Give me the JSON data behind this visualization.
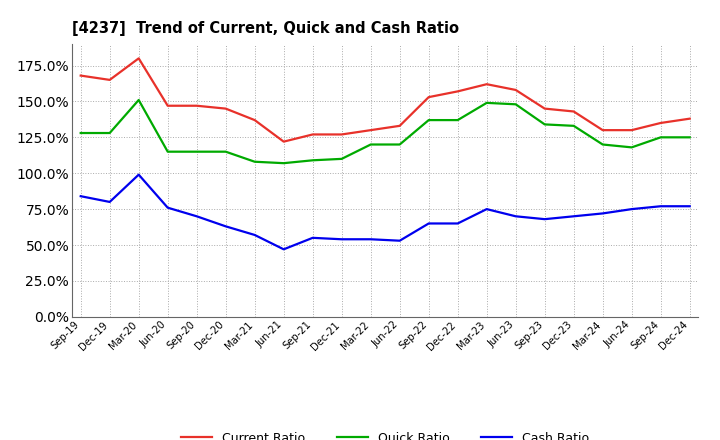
{
  "title": "[4237]  Trend of Current, Quick and Cash Ratio",
  "labels": [
    "Sep-19",
    "Dec-19",
    "Mar-20",
    "Jun-20",
    "Sep-20",
    "Dec-20",
    "Mar-21",
    "Jun-21",
    "Sep-21",
    "Dec-21",
    "Mar-22",
    "Jun-22",
    "Sep-22",
    "Dec-22",
    "Mar-23",
    "Jun-23",
    "Sep-23",
    "Dec-23",
    "Mar-24",
    "Jun-24",
    "Sep-24",
    "Dec-24"
  ],
  "current_ratio": [
    168,
    165,
    180,
    147,
    147,
    145,
    137,
    122,
    127,
    127,
    130,
    133,
    153,
    157,
    162,
    158,
    145,
    143,
    130,
    130,
    135,
    138
  ],
  "quick_ratio": [
    128,
    128,
    151,
    115,
    115,
    115,
    108,
    107,
    109,
    110,
    120,
    120,
    137,
    137,
    149,
    148,
    134,
    133,
    120,
    118,
    125,
    125
  ],
  "cash_ratio": [
    84,
    80,
    99,
    76,
    70,
    63,
    57,
    47,
    55,
    54,
    54,
    53,
    65,
    65,
    75,
    70,
    68,
    70,
    72,
    75,
    77,
    77
  ],
  "ylim": [
    0,
    190
  ],
  "yticks": [
    0,
    25,
    50,
    75,
    100,
    125,
    150,
    175
  ],
  "current_color": "#e8312a",
  "quick_color": "#00aa00",
  "cash_color": "#0000ee",
  "bg_color": "#ffffff",
  "plot_bg_color": "#ffffff",
  "grid_color": "#aaaaaa",
  "legend_labels": [
    "Current Ratio",
    "Quick Ratio",
    "Cash Ratio"
  ]
}
